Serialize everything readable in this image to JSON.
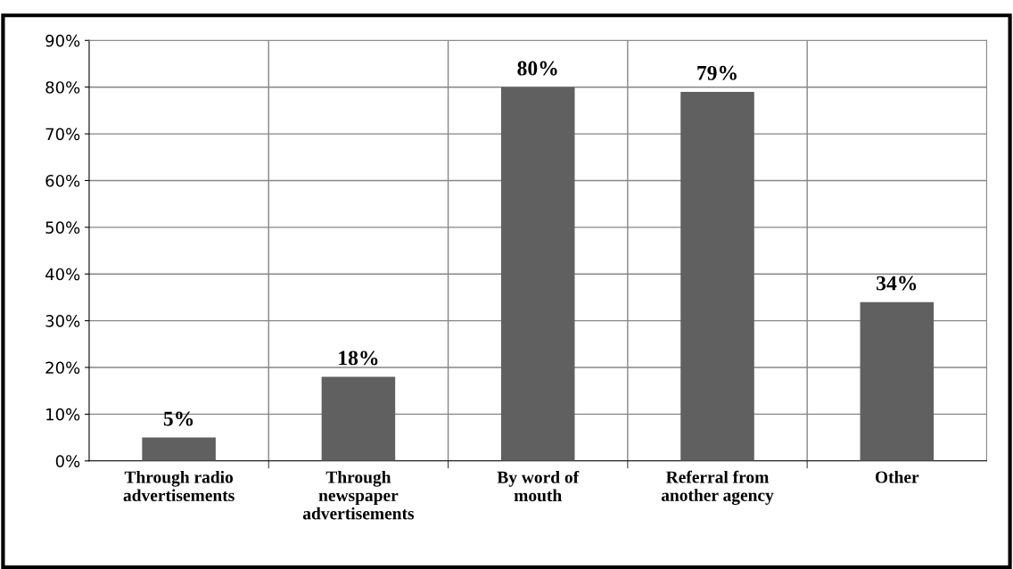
{
  "chart_data": {
    "type": "bar",
    "categories": [
      "Through radio\nadvertisements",
      "Through\nnewspaper\nadvertisements",
      "By word of\nmouth",
      "Referral from\nanother agency",
      "Other"
    ],
    "values": [
      5,
      18,
      80,
      79,
      34
    ],
    "value_labels": [
      "5%",
      "18%",
      "80%",
      "79%",
      "34%"
    ],
    "color": "#606060",
    "ylim": [
      0,
      90
    ],
    "yticks": [
      {
        "value": 0,
        "label": "0%"
      },
      {
        "value": 10,
        "label": "10%"
      },
      {
        "value": 20,
        "label": "20%"
      },
      {
        "value": 30,
        "label": "30%"
      },
      {
        "value": 40,
        "label": "40%"
      },
      {
        "value": 50,
        "label": "50%"
      },
      {
        "value": 60,
        "label": "60%"
      },
      {
        "value": 70,
        "label": "70%"
      },
      {
        "value": 80,
        "label": "80%"
      },
      {
        "value": 90,
        "label": "90%"
      }
    ],
    "grid": true,
    "legend": false
  }
}
